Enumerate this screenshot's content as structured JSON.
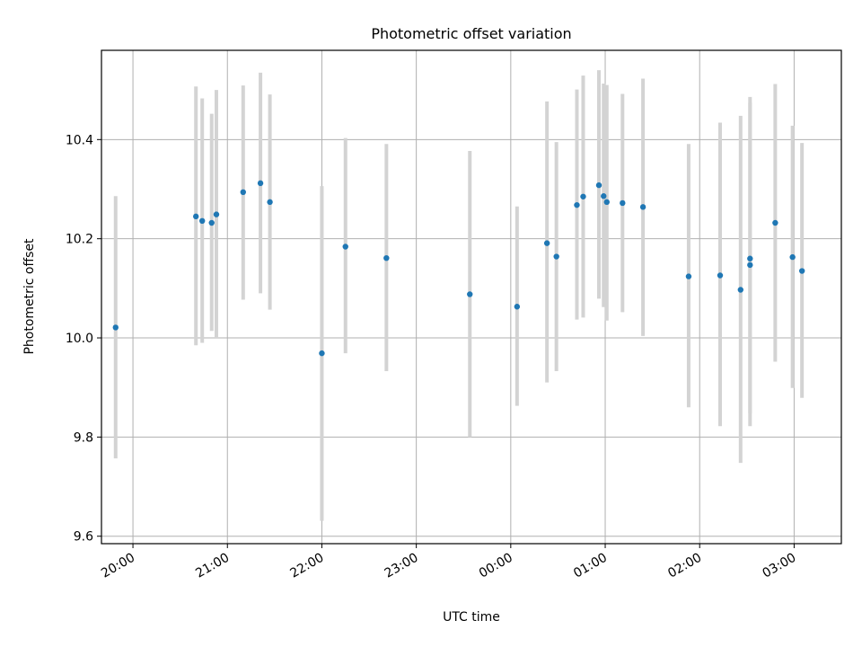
{
  "chart_data": {
    "type": "scatter",
    "title": "Photometric offset variation",
    "xlabel": "UTC time",
    "ylabel": "Photometric offset",
    "x_unit": "hours",
    "xlim": [
      "19:40",
      "03:30"
    ],
    "ylim": [
      9.585,
      10.58
    ],
    "x_ticks": [
      "20:00",
      "21:00",
      "22:00",
      "23:00",
      "00:00",
      "01:00",
      "02:00",
      "03:00"
    ],
    "y_ticks": [
      "9.6",
      "9.8",
      "10.0",
      "10.2",
      "10.4"
    ],
    "grid": true,
    "colors": {
      "point": "#1f77b4",
      "errorbar": "#d3d3d3",
      "grid": "#b0b0b0"
    },
    "points": [
      {
        "t": "19:49",
        "y": 10.021,
        "lo": 9.757,
        "hi": 10.286
      },
      {
        "t": "20:40",
        "y": 10.245,
        "lo": 9.985,
        "hi": 10.507
      },
      {
        "t": "20:44",
        "y": 10.236,
        "lo": 9.99,
        "hi": 10.483
      },
      {
        "t": "20:50",
        "y": 10.232,
        "lo": 10.014,
        "hi": 10.452
      },
      {
        "t": "20:53",
        "y": 10.249,
        "lo": 10.0,
        "hi": 10.5
      },
      {
        "t": "21:10",
        "y": 10.294,
        "lo": 10.077,
        "hi": 10.509
      },
      {
        "t": "21:21",
        "y": 10.312,
        "lo": 10.09,
        "hi": 10.535
      },
      {
        "t": "21:27",
        "y": 10.274,
        "lo": 10.057,
        "hi": 10.491
      },
      {
        "t": "22:00",
        "y": 9.969,
        "lo": 9.631,
        "hi": 10.306
      },
      {
        "t": "22:15",
        "y": 10.184,
        "lo": 9.969,
        "hi": 10.403
      },
      {
        "t": "22:41",
        "y": 10.161,
        "lo": 9.933,
        "hi": 10.391
      },
      {
        "t": "23:34",
        "y": 10.088,
        "lo": 9.8,
        "hi": 10.377
      },
      {
        "t": "00:04",
        "y": 10.063,
        "lo": 9.863,
        "hi": 10.265
      },
      {
        "t": "00:23",
        "y": 10.191,
        "lo": 9.91,
        "hi": 10.477
      },
      {
        "t": "00:29",
        "y": 10.164,
        "lo": 9.933,
        "hi": 10.395
      },
      {
        "t": "00:42",
        "y": 10.268,
        "lo": 10.037,
        "hi": 10.501
      },
      {
        "t": "00:46",
        "y": 10.285,
        "lo": 10.041,
        "hi": 10.529
      },
      {
        "t": "00:56",
        "y": 10.308,
        "lo": 10.079,
        "hi": 10.54
      },
      {
        "t": "00:59",
        "y": 10.286,
        "lo": 10.062,
        "hi": 10.513
      },
      {
        "t": "01:01",
        "y": 10.274,
        "lo": 10.035,
        "hi": 10.51
      },
      {
        "t": "01:11",
        "y": 10.272,
        "lo": 10.052,
        "hi": 10.492
      },
      {
        "t": "01:24",
        "y": 10.264,
        "lo": 10.004,
        "hi": 10.523
      },
      {
        "t": "01:53",
        "y": 10.124,
        "lo": 9.86,
        "hi": 10.391
      },
      {
        "t": "02:13",
        "y": 10.126,
        "lo": 9.822,
        "hi": 10.434
      },
      {
        "t": "02:26",
        "y": 10.097,
        "lo": 9.748,
        "hi": 10.448
      },
      {
        "t": "02:32",
        "y": 10.16,
        "lo": 9.848,
        "hi": 10.474
      },
      {
        "t": "02:32",
        "y": 10.147,
        "lo": 9.822,
        "hi": 10.486
      },
      {
        "t": "02:48",
        "y": 10.232,
        "lo": 9.952,
        "hi": 10.512
      },
      {
        "t": "02:59",
        "y": 10.163,
        "lo": 9.899,
        "hi": 10.428
      },
      {
        "t": "03:05",
        "y": 10.135,
        "lo": 9.879,
        "hi": 10.393
      }
    ]
  }
}
